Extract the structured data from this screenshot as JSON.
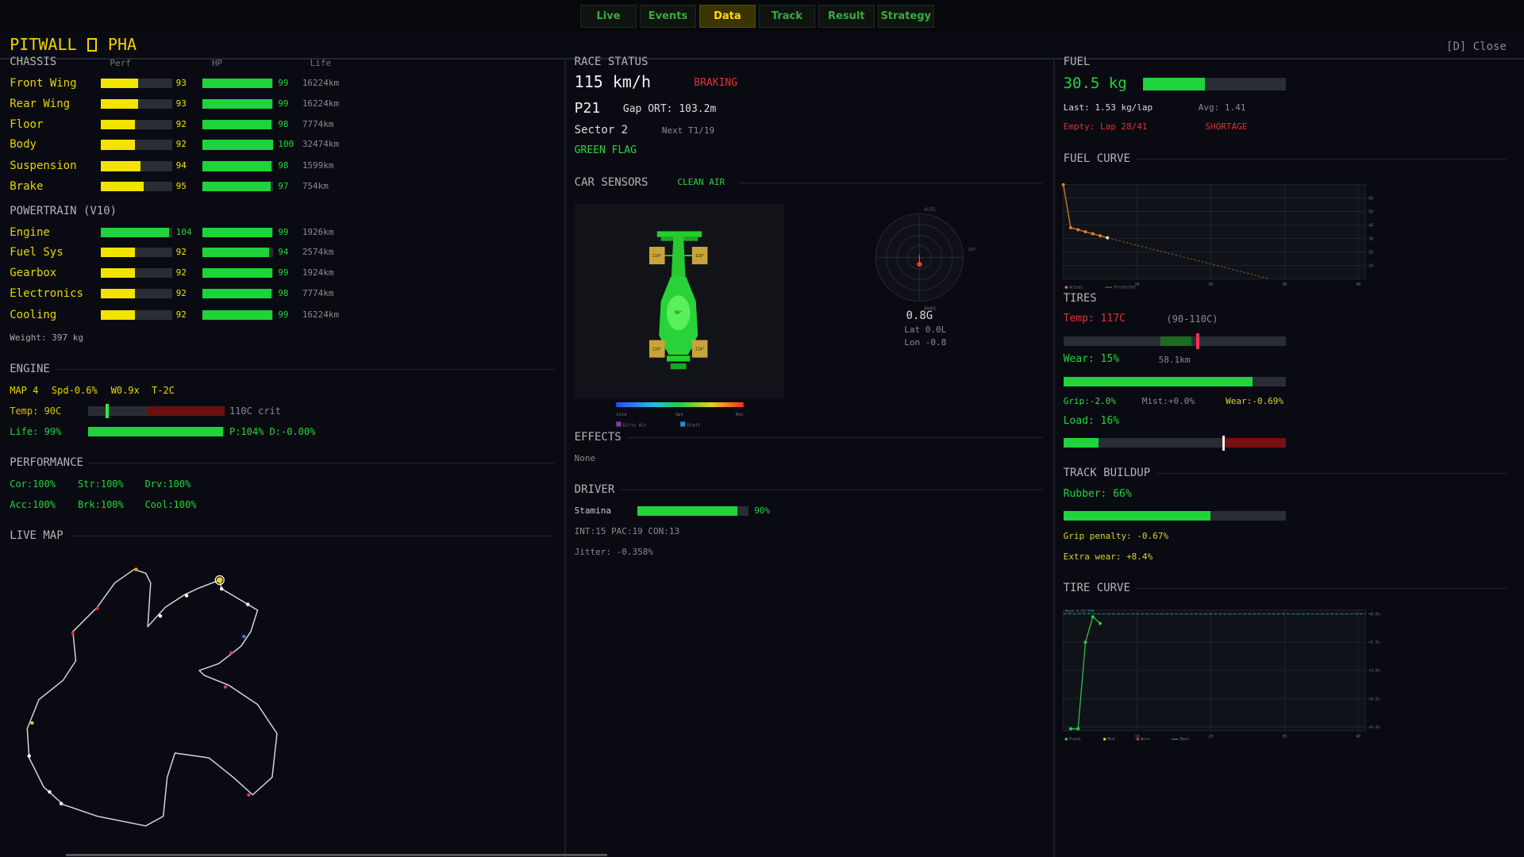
{
  "tabs": [
    "Live",
    "Events",
    "Data",
    "Track",
    "Result",
    "Strategy"
  ],
  "active_tab": 2,
  "header": {
    "title": "PITWALL",
    "team": "PHA",
    "close": "[D] Close"
  },
  "chassis": {
    "title": "CHASSIS",
    "columns": [
      "Perf",
      "HP",
      "Life"
    ],
    "rows": [
      {
        "name": "Front Wing",
        "perf": 93,
        "perf_color": "#f2e400",
        "hp": 99,
        "life": "16224km"
      },
      {
        "name": "Rear Wing",
        "perf": 93,
        "perf_color": "#f2e400",
        "hp": 99,
        "life": "16224km"
      },
      {
        "name": "Floor",
        "perf": 92,
        "perf_color": "#f2e400",
        "hp": 98,
        "life": "7774km"
      },
      {
        "name": "Body",
        "perf": 92,
        "perf_color": "#f2e400",
        "hp": 100,
        "life": "32474km"
      },
      {
        "name": "Suspension",
        "perf": 94,
        "perf_color": "#f2e400",
        "hp": 98,
        "life": "1599km"
      },
      {
        "name": "Brake",
        "perf": 95,
        "perf_color": "#f2e400",
        "hp": 97,
        "life": "754km"
      }
    ]
  },
  "powertrain": {
    "title": "POWERTRAIN (V10)",
    "rows": [
      {
        "name": "Engine",
        "perf": 104,
        "perf_color": "#22d33a",
        "hp": 99,
        "life": "1926km"
      },
      {
        "name": "Fuel Sys",
        "perf": 92,
        "perf_color": "#f2e400",
        "hp": 94,
        "life": "2574km"
      },
      {
        "name": "Gearbox",
        "perf": 92,
        "perf_color": "#f2e400",
        "hp": 99,
        "life": "1924km"
      },
      {
        "name": "Electronics",
        "perf": 92,
        "perf_color": "#f2e400",
        "hp": 98,
        "life": "7774km"
      },
      {
        "name": "Cooling",
        "perf": 92,
        "perf_color": "#f2e400",
        "hp": 99,
        "life": "16224km"
      }
    ]
  },
  "weight": "Weight: 397 kg",
  "engine": {
    "title": "ENGINE",
    "settings": [
      "MAP 4",
      "Spd-0.6%",
      "W0.9x",
      "T-2C"
    ],
    "temp": "Temp: 90C",
    "crit": "110C crit",
    "life": {
      "value": 99,
      "label": "Life: 99%"
    },
    "life_detail": "P:104% D:-0.00%"
  },
  "performance": {
    "title": "PERFORMANCE",
    "items": [
      "Cor:100%",
      "Str:100%",
      "Drv:100%",
      "Acc:100%",
      "Brk:100%",
      "Cool:100%"
    ]
  },
  "live_map": {
    "title": "LIVE MAP"
  },
  "race_status": {
    "title": "RACE STATUS",
    "speed": "115 km/h",
    "state": "BRAKING",
    "position": "P21",
    "gap": "Gap ORT: 103.2m",
    "sector": "Sector 2",
    "next": "Next T1/19",
    "flag": "GREEN FLAG"
  },
  "car_sensors": {
    "title": "CAR SENSORS",
    "air": "CLEAN AIR",
    "tire_temps": [
      "110°",
      "110°",
      "110°",
      "110°"
    ],
    "body_temp": "98°",
    "scale": [
      "Cold",
      "Opt",
      "Hot"
    ],
    "legend": [
      "Dirty Air",
      "Draft"
    ]
  },
  "g_meter": {
    "labels": [
      "ACCEL",
      "BRAKE",
      "LAT"
    ],
    "value": "0.8G",
    "lat": "Lat 0.0L",
    "lon": "Lon -0.8"
  },
  "effects": {
    "title": "EFFECTS",
    "text": "None"
  },
  "driver": {
    "title": "DRIVER",
    "stamina_name": "Stamina",
    "stamina": {
      "value": 90,
      "label": "90%"
    },
    "stats": "INT:15 PAC:19 CON:13",
    "jitter": "Jitter: -0.358%"
  },
  "fuel": {
    "title": "FUEL",
    "amount": {
      "value": 30.5,
      "label": "30.5 kg"
    },
    "last": "Last: 1.53 kg/lap",
    "avg": "Avg: 1.41",
    "empty": "Empty: Lap 28/41",
    "warning": "SHORTAGE"
  },
  "tires": {
    "title": "TIRES",
    "temp": "Temp: 117C",
    "range": "(90-110C)",
    "wear": {
      "value": 15,
      "label": "Wear: 15%"
    },
    "distance": "58.1km",
    "grip": "Grip:-2.0%",
    "mist": "Mist:+0.0%",
    "wear_rate": "Wear:-0.69%",
    "load": {
      "value": 16,
      "label": "Load: 16%"
    }
  },
  "track_buildup": {
    "title": "TRACK BUILDUP",
    "rubber": {
      "value": 66,
      "label": "Rubber: 66%"
    },
    "grip_penalty": "Grip penalty: -0.67%",
    "extra_wear": "Extra wear: +8.4%"
  },
  "chart_data": [
    {
      "type": "line",
      "title": "FUEL CURVE",
      "x": [
        0,
        1,
        2,
        3,
        4,
        5,
        6,
        28
      ],
      "series": [
        {
          "name": "Actual",
          "color": "#e0861c",
          "values": [
            70,
            38,
            36.5,
            35,
            33.5,
            32,
            30.5,
            null
          ]
        },
        {
          "name": "Projected",
          "color": "#a8662a",
          "dashed": true,
          "values": [
            null,
            null,
            null,
            null,
            null,
            null,
            30.5,
            0
          ]
        }
      ],
      "xlim": [
        0,
        41
      ],
      "ylim": [
        0,
        70
      ],
      "xticks": [
        10,
        20,
        30,
        40
      ],
      "yticks": [
        10,
        20,
        30,
        40,
        50,
        60
      ],
      "grid": true
    },
    {
      "type": "line",
      "title": "TIRE CURVE",
      "x": [
        1,
        2,
        3,
        4,
        5
      ],
      "series": [
        {
          "name": "Fresh",
          "color": "#2ecc40",
          "values": [
            6.1,
            6.1,
            1.5,
            0.15,
            0.5
          ]
        },
        {
          "name": "Mid",
          "color": "#e8c020",
          "values": [
            null,
            null,
            null,
            null,
            null
          ]
        },
        {
          "name": "Worn",
          "color": "#e03030",
          "values": [
            null,
            null,
            null,
            null,
            null
          ]
        }
      ],
      "best": {
        "name": "Best",
        "label": "Best 1:33.250",
        "value": 0,
        "color": "#3a9a9a"
      },
      "xlim": [
        0,
        41
      ],
      "ylim": [
        6.2,
        -0.2
      ],
      "xticks": [
        10,
        20,
        30,
        40
      ],
      "yticks": [
        {
          "value": 0,
          "label": "+0.0s"
        },
        {
          "value": 1.5,
          "label": "+1.5s"
        },
        {
          "value": 3,
          "label": "+3.0s"
        },
        {
          "value": 4.5,
          "label": "+4.5s"
        },
        {
          "value": 6,
          "label": "+6.0s"
        }
      ],
      "grid": true
    }
  ]
}
